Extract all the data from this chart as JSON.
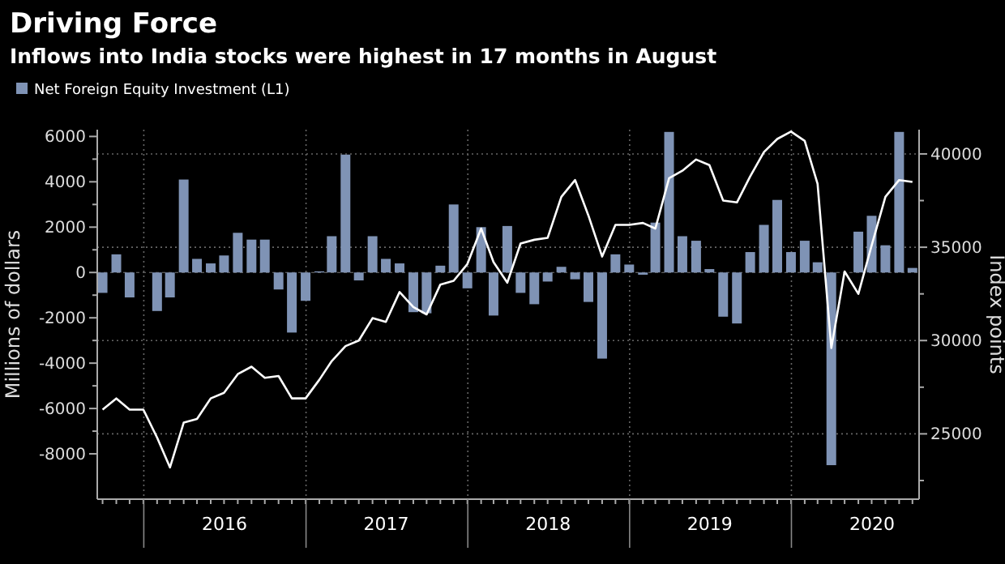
{
  "chart_data": {
    "type": "bar",
    "title": "Driving Force",
    "subtitle": "Inflows into India stocks were highest in 17 months in August",
    "ylabel": "Millions of dollars",
    "y2label": "Index points",
    "x": [
      "2015-09-30",
      "2015-10-31",
      "2015-11-30",
      "2015-12-31",
      "2016-01-31",
      "2016-02-29",
      "2016-03-31",
      "2016-04-30",
      "2016-05-31",
      "2016-06-30",
      "2016-07-31",
      "2016-08-31",
      "2016-09-30",
      "2016-10-31",
      "2016-11-30",
      "2016-12-31",
      "2017-01-31",
      "2017-02-28",
      "2017-03-31",
      "2017-04-30",
      "2017-05-31",
      "2017-06-30",
      "2017-07-31",
      "2017-08-31",
      "2017-09-30",
      "2017-10-31",
      "2017-11-30",
      "2017-12-31",
      "2018-01-31",
      "2018-02-28",
      "2018-03-31",
      "2018-04-30",
      "2018-05-31",
      "2018-06-30",
      "2018-07-31",
      "2018-08-31",
      "2018-09-30",
      "2018-10-31",
      "2018-11-30",
      "2018-12-31",
      "2019-01-31",
      "2019-02-28",
      "2019-03-31",
      "2019-04-30",
      "2019-05-31",
      "2019-06-30",
      "2019-07-31",
      "2019-08-31",
      "2019-09-30",
      "2019-10-31",
      "2019-11-30",
      "2019-12-31",
      "2020-01-31",
      "2020-02-29",
      "2020-03-31",
      "2020-04-30",
      "2020-05-31",
      "2020-06-30",
      "2020-07-31",
      "2020-08-31",
      "2020-09-30"
    ],
    "series": [
      {
        "type": "line",
        "axis": "y2",
        "color": "#ffffff",
        "values": [
          26300,
          26900,
          26300,
          26300,
          24800,
          23200,
          25600,
          25800,
          26900,
          27200,
          28200,
          28600,
          28000,
          28100,
          26900,
          26900,
          27900,
          28900,
          29700,
          30000,
          31200,
          31000,
          32600,
          31800,
          31400,
          33000,
          33200,
          34100,
          36000,
          34200,
          33100,
          35200,
          35400,
          35500,
          37700,
          38600,
          36700,
          34500,
          36200,
          36200,
          36300,
          36000,
          38700,
          39100,
          39700,
          39400,
          37500,
          37400,
          38800,
          40100,
          40800,
          41200,
          40700,
          38400,
          29600,
          33700,
          32500,
          35100,
          37700,
          38600,
          38500
        ]
      },
      {
        "name": "Net Foreign Equity Investment (L1)",
        "color": "#7f93b5",
        "values": [
          -900,
          800,
          -1100,
          0,
          -1700,
          -1100,
          4100,
          600,
          400,
          750,
          1750,
          1450,
          1450,
          -750,
          -2650,
          -1250,
          50,
          1600,
          5200,
          -350,
          1600,
          600,
          400,
          -1750,
          -1800,
          300,
          3000,
          -700,
          2000,
          -1900,
          2050,
          -900,
          -1400,
          -400,
          250,
          -300,
          -1300,
          -3800,
          800,
          350,
          -100,
          2200,
          6200,
          1600,
          1400,
          150,
          -1950,
          -2250,
          900,
          2100,
          3200,
          900,
          1400,
          450,
          -8500,
          0,
          1800,
          2500,
          1200,
          6200,
          200
        ]
      }
    ],
    "xlim": [
      "2015-09-18",
      "2020-10-15"
    ],
    "xticks": [
      {
        "value": "2016-01-01",
        "label": null
      },
      {
        "value": "2016-07-01",
        "label": "2016"
      },
      {
        "value": "2017-01-01",
        "label": null
      },
      {
        "value": "2017-07-01",
        "label": "2017"
      },
      {
        "value": "2018-01-01",
        "label": null
      },
      {
        "value": "2018-07-01",
        "label": "2018"
      },
      {
        "value": "2019-01-01",
        "label": null
      },
      {
        "value": "2019-07-01",
        "label": "2019"
      },
      {
        "value": "2020-01-01",
        "label": null
      },
      {
        "value": "2020-07-01",
        "label": "2020"
      }
    ],
    "ylim": [
      -10000,
      6300
    ],
    "yticks": [
      -8000,
      {
        "value": -7000,
        "label": null
      },
      -6000,
      {
        "value": -5000,
        "label": null
      },
      -4000,
      {
        "value": -3000,
        "label": null
      },
      -2000,
      {
        "value": -1000,
        "label": null
      },
      0,
      {
        "value": 1000,
        "label": null
      },
      2000,
      {
        "value": 3000,
        "label": null
      },
      4000,
      {
        "value": 5000,
        "label": null
      },
      6000
    ],
    "y2lim": [
      21500,
      41300
    ],
    "y2ticks": [
      {
        "value": 22500,
        "label": null
      },
      25000,
      {
        "value": 27500,
        "label": null
      },
      30000,
      {
        "value": 32500,
        "label": null
      },
      35000,
      {
        "value": 37500,
        "label": null
      },
      40000
    ],
    "ref_lines": [
      {
        "axis": "y",
        "value": 0,
        "color": "#777777",
        "line_style": "dashed"
      }
    ],
    "grid": true,
    "legend": "top left"
  }
}
